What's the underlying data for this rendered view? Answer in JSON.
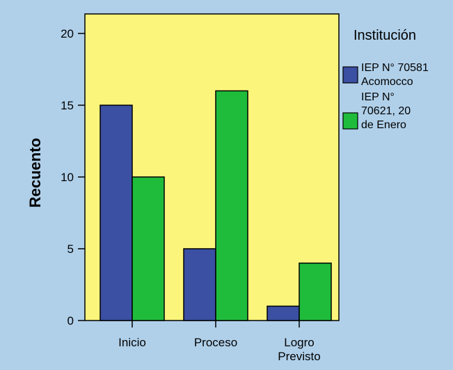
{
  "chart_data": {
    "type": "bar",
    "title": "",
    "xlabel": "",
    "ylabel": "Recuento",
    "ylim": [
      0,
      20
    ],
    "yticks": [
      "0",
      "5",
      "10",
      "15",
      "20"
    ],
    "categories": [
      [
        "Inicio"
      ],
      [
        "Proceso"
      ],
      [
        "Logro",
        "Previsto"
      ]
    ],
    "legend": {
      "title": "Institución",
      "placement": "right"
    },
    "series": [
      {
        "name": [
          "IEP N° 70581",
          "Acomocco"
        ],
        "color": "#3b4fa3",
        "values": [
          15,
          5,
          1
        ]
      },
      {
        "name": [
          "IEP N°",
          "70621, 20",
          "de Enero"
        ],
        "color": "#1fbc3c",
        "values": [
          10,
          16,
          4
        ]
      }
    ],
    "plot_background": "#fbf57c",
    "grid": false
  }
}
